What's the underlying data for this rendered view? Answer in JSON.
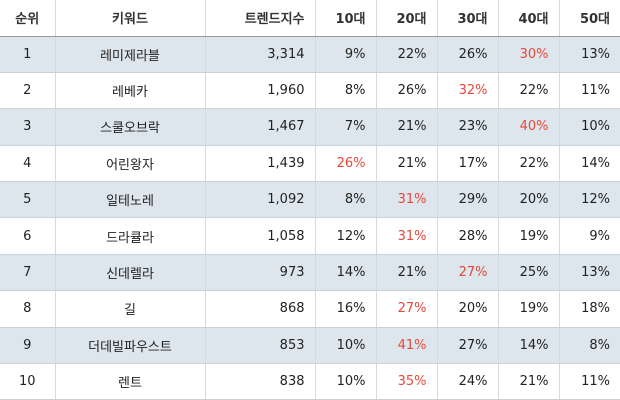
{
  "colors": {
    "highlight": "#e8483b",
    "stripe": "#dde6ec",
    "text": "#222222"
  },
  "table": {
    "headers": {
      "rank": "순위",
      "keyword": "키워드",
      "score": "트렌드지수",
      "age10": "10대",
      "age20": "20대",
      "age30": "30대",
      "age40": "40대",
      "age50": "50대"
    },
    "rows": [
      {
        "rank": "1",
        "keyword": "레미제라블",
        "score": "3,314",
        "age10": "9%",
        "age20": "22%",
        "age30": "26%",
        "age40": "30%",
        "age50": "13%",
        "highlight": "age40"
      },
      {
        "rank": "2",
        "keyword": "레베카",
        "score": "1,960",
        "age10": "8%",
        "age20": "26%",
        "age30": "32%",
        "age40": "22%",
        "age50": "11%",
        "highlight": "age30"
      },
      {
        "rank": "3",
        "keyword": "스쿨오브락",
        "score": "1,467",
        "age10": "7%",
        "age20": "21%",
        "age30": "23%",
        "age40": "40%",
        "age50": "10%",
        "highlight": "age40"
      },
      {
        "rank": "4",
        "keyword": "어린왕자",
        "score": "1,439",
        "age10": "26%",
        "age20": "21%",
        "age30": "17%",
        "age40": "22%",
        "age50": "14%",
        "highlight": "age10"
      },
      {
        "rank": "5",
        "keyword": "일테노레",
        "score": "1,092",
        "age10": "8%",
        "age20": "31%",
        "age30": "29%",
        "age40": "20%",
        "age50": "12%",
        "highlight": "age20"
      },
      {
        "rank": "6",
        "keyword": "드라큘라",
        "score": "1,058",
        "age10": "12%",
        "age20": "31%",
        "age30": "28%",
        "age40": "19%",
        "age50": "9%",
        "highlight": "age20"
      },
      {
        "rank": "7",
        "keyword": "신데렐라",
        "score": "973",
        "age10": "14%",
        "age20": "21%",
        "age30": "27%",
        "age40": "25%",
        "age50": "13%",
        "highlight": "age30"
      },
      {
        "rank": "8",
        "keyword": "길",
        "score": "868",
        "age10": "16%",
        "age20": "27%",
        "age30": "20%",
        "age40": "19%",
        "age50": "18%",
        "highlight": "age20"
      },
      {
        "rank": "9",
        "keyword": "더데빌파우스트",
        "score": "853",
        "age10": "10%",
        "age20": "41%",
        "age30": "27%",
        "age40": "14%",
        "age50": "8%",
        "highlight": "age20"
      },
      {
        "rank": "10",
        "keyword": "렌트",
        "score": "838",
        "age10": "10%",
        "age20": "35%",
        "age30": "24%",
        "age40": "21%",
        "age50": "11%",
        "highlight": "age20"
      }
    ]
  }
}
